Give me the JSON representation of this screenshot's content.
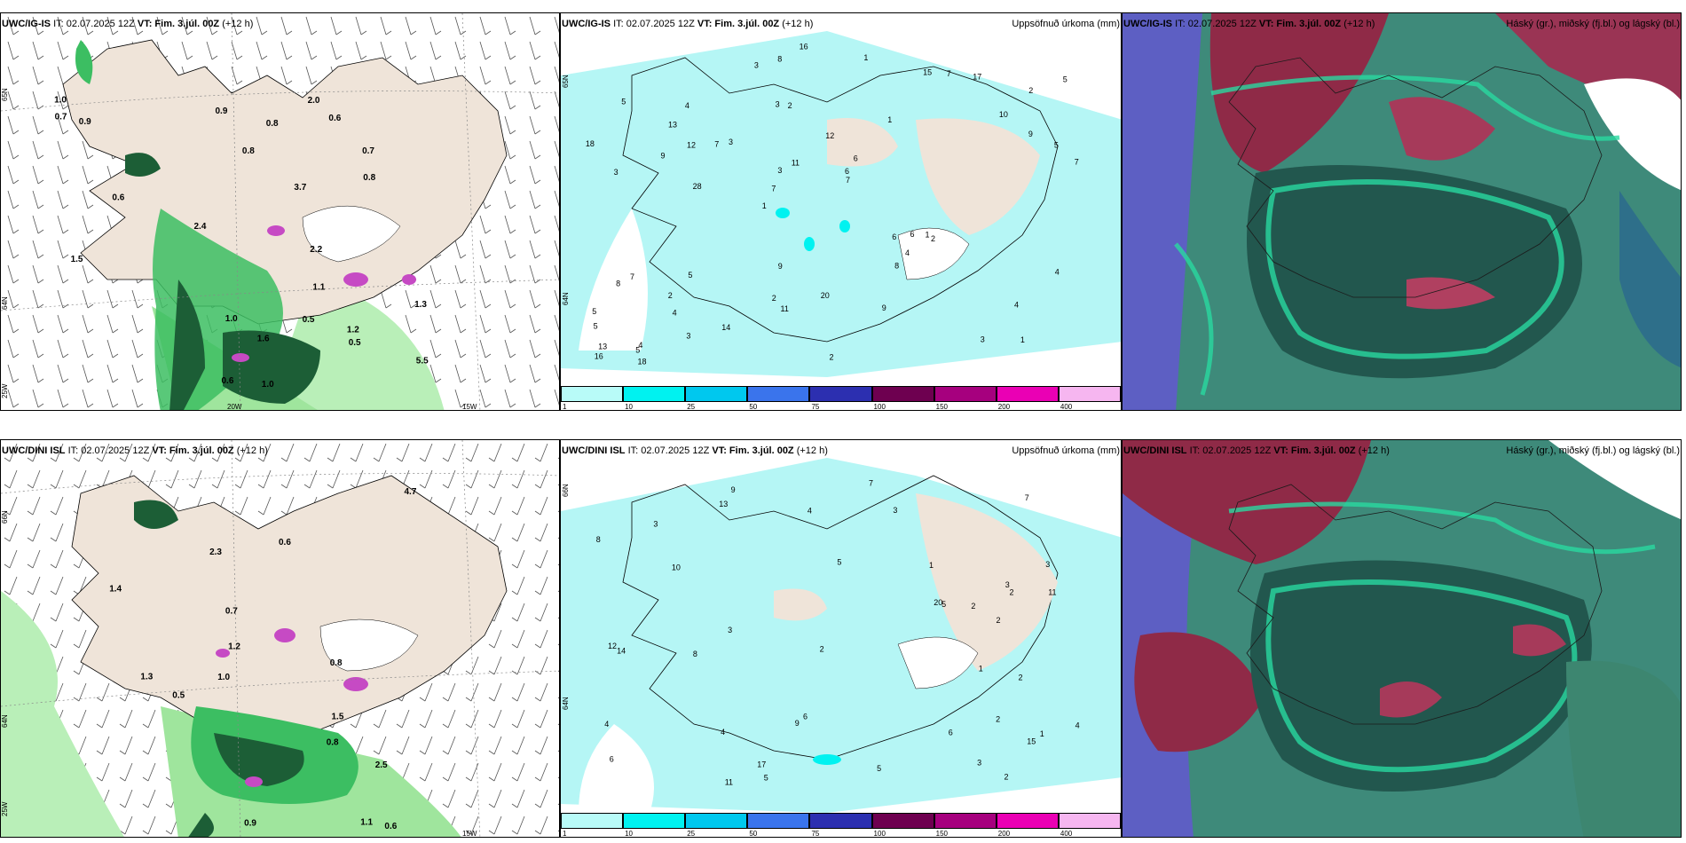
{
  "panels": [
    {
      "title_model": "UWC/IG-IS",
      "title_it": "IT: 02.07.2025 12Z",
      "title_vt": "VT: Fim. 3.júl. 00Z",
      "title_lead": "(+12 h)",
      "title_right": ""
    },
    {
      "title_model": "UWC/IG-IS",
      "title_it": "IT: 02.07.2025 12Z",
      "title_vt": "VT: Fim. 3.júl. 00Z",
      "title_lead": "(+12 h)",
      "title_right": "Uppsöfnuð úrkoma (mm)"
    },
    {
      "title_model": "UWC/IG-IS",
      "title_it": "IT: 02.07.2025 12Z",
      "title_vt": "VT: Fim. 3.júl. 00Z",
      "title_lead": "(+12 h)",
      "title_right": "Háský (gr.), miðský (fj.bl.) og lágský (bl.)"
    },
    {
      "title_model": "UWC/DINI ISL",
      "title_it": "IT: 02.07.2025 12Z",
      "title_vt": "VT: Fim. 3.júl. 00Z",
      "title_lead": "(+12 h)",
      "title_right": ""
    },
    {
      "title_model": "UWC/DINI ISL",
      "title_it": "IT: 02.07.2025 12Z",
      "title_vt": "VT: Fim. 3.júl. 00Z",
      "title_lead": "(+12 h)",
      "title_right": "Uppsöfnuð úrkoma (mm)"
    },
    {
      "title_model": "UWC/DINI ISL",
      "title_it": "IT: 02.07.2025 12Z",
      "title_vt": "VT: Fim. 3.júl. 00Z",
      "title_lead": "(+12 h)",
      "title_right": "Háský (gr.), miðský (fj.bl.) og lágský (bl.)"
    }
  ],
  "axis_labels": {
    "lat66": "66N",
    "lat64": "64N",
    "lat65": "65N",
    "lon20": "20W",
    "lon15": "15W",
    "lon25": "25W"
  },
  "colorbar": {
    "ticks": [
      "1",
      "10",
      "25",
      "50",
      "75",
      "100",
      "150",
      "200",
      "400"
    ],
    "colors": [
      "#b8fbf8",
      "#00f2f0",
      "#00c8ee",
      "#3a74ec",
      "#2c2fb0",
      "#6e0050",
      "#a6007e",
      "#ea00b4",
      "#f6b6f0"
    ]
  },
  "colors": {
    "land": "#efe4d9",
    "precip_light": "#b5f6f5",
    "wind_green": "#3cbe62",
    "dark_green": "#1c5e36",
    "magenta": "#c64ac4"
  },
  "precip_labels_top": [
    "1",
    "3",
    "2",
    "1",
    "1",
    "4",
    "3",
    "12",
    "7",
    "3",
    "5",
    "4",
    "2",
    "6",
    "2",
    "5",
    "8",
    "7",
    "6",
    "9",
    "7",
    "2",
    "3",
    "4",
    "15",
    "5",
    "3",
    "4",
    "1",
    "2",
    "7",
    "9",
    "8",
    "3",
    "5",
    "6",
    "13",
    "11",
    "7",
    "8",
    "10",
    "5",
    "4",
    "9",
    "2",
    "18",
    "16",
    "20",
    "17",
    "16",
    "28",
    "18",
    "13",
    "7",
    "5",
    "1",
    "3",
    "11",
    "4",
    "9",
    "14",
    "6",
    "12",
    "5"
  ],
  "precip_labels_bottom": [
    "2",
    "3",
    "1",
    "5",
    "6",
    "9",
    "3",
    "4",
    "7",
    "10",
    "11",
    "8",
    "2",
    "5",
    "4",
    "3",
    "15",
    "13",
    "6",
    "2",
    "12",
    "14",
    "5",
    "20",
    "17",
    "9",
    "7",
    "3",
    "1",
    "4",
    "8",
    "6",
    "11",
    "2",
    "2",
    "3",
    "5",
    "4",
    "2",
    "3",
    "1",
    "2"
  ],
  "wind_labels_top": [
    "0.8",
    "0.5",
    "1.0",
    "0.7",
    "0.6",
    "0.9",
    "1.0",
    "2.0",
    "0.6",
    "1.5",
    "1.2",
    "0.8",
    "2.2",
    "0.9",
    "5.5",
    "0.6",
    "1.3",
    "0.5",
    "1.6",
    "1.1",
    "0.7",
    "1.0",
    "3.7",
    "2.4",
    "0.8"
  ],
  "wind_labels_bottom": [
    "0.7",
    "0.6",
    "1.5",
    "0.9",
    "0.8",
    "1.0",
    "0.5",
    "1.2",
    "1.1",
    "1.3",
    "2.3",
    "1.4",
    "0.6",
    "4.7",
    "2.5",
    "0.8"
  ]
}
